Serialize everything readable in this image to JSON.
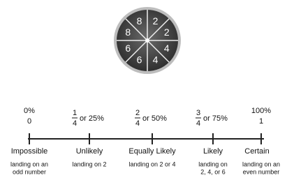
{
  "spinner": {
    "sections": [
      "2",
      "2",
      "4",
      "4",
      "6",
      "6",
      "8",
      "8"
    ]
  },
  "number_line": {
    "points": [
      {
        "percent": "0%",
        "value": "0",
        "label": "Impossible",
        "description": [
          "landing on an",
          "odd number"
        ]
      },
      {
        "numerator": "1",
        "denominator": "4",
        "text": "or 25%",
        "label": "Unlikely",
        "description": [
          "landing on 2"
        ]
      },
      {
        "numerator": "2",
        "denominator": "4",
        "text": "or 50%",
        "label": "Equally Likely",
        "description": [
          "landing on 2 or 4"
        ]
      },
      {
        "numerator": "3",
        "denominator": "4",
        "text": "or 75%",
        "label": "Likely",
        "description": [
          "landing on",
          "2, 4, or 6"
        ]
      },
      {
        "percent": "100%",
        "value": "1",
        "label": "Certain",
        "description": [
          "landing on an",
          "even number"
        ]
      }
    ]
  }
}
